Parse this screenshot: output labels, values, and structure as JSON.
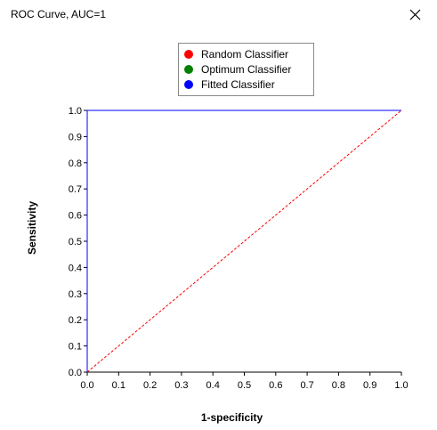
{
  "window": {
    "title": "ROC Curve, AUC=1",
    "close_icon": "close-icon"
  },
  "legend": {
    "items": [
      {
        "label": "Random Classifier",
        "color": "#ff0000"
      },
      {
        "label": "Optimum Classifier",
        "color": "#008000"
      },
      {
        "label": "Fitted Classifier",
        "color": "#0000ff"
      }
    ]
  },
  "chart_data": {
    "type": "line",
    "xlabel": "1-specificity",
    "ylabel": "Sensitivity",
    "xlim": [
      0,
      1
    ],
    "ylim": [
      0,
      1
    ],
    "x_ticks": [
      "0.0",
      "0.1",
      "0.2",
      "0.3",
      "0.4",
      "0.5",
      "0.6",
      "0.7",
      "0.8",
      "0.9",
      "1.0"
    ],
    "y_ticks": [
      "0.0",
      "0.1",
      "0.2",
      "0.3",
      "0.4",
      "0.5",
      "0.6",
      "0.7",
      "0.8",
      "0.9",
      "1.0"
    ],
    "grid": false,
    "legend_position": "top-center",
    "series": [
      {
        "name": "Random Classifier",
        "color": "#ff0000",
        "style": "dashed",
        "points": [
          [
            0,
            0
          ],
          [
            1,
            1
          ]
        ]
      },
      {
        "name": "Optimum Classifier",
        "color": "#008000",
        "style": "solid",
        "points": [
          [
            0,
            0
          ],
          [
            0,
            1
          ],
          [
            1,
            1
          ]
        ]
      },
      {
        "name": "Fitted Classifier",
        "color": "#0000ff",
        "style": "solid",
        "points": [
          [
            0,
            0
          ],
          [
            0,
            1
          ],
          [
            1,
            1
          ]
        ]
      }
    ]
  }
}
